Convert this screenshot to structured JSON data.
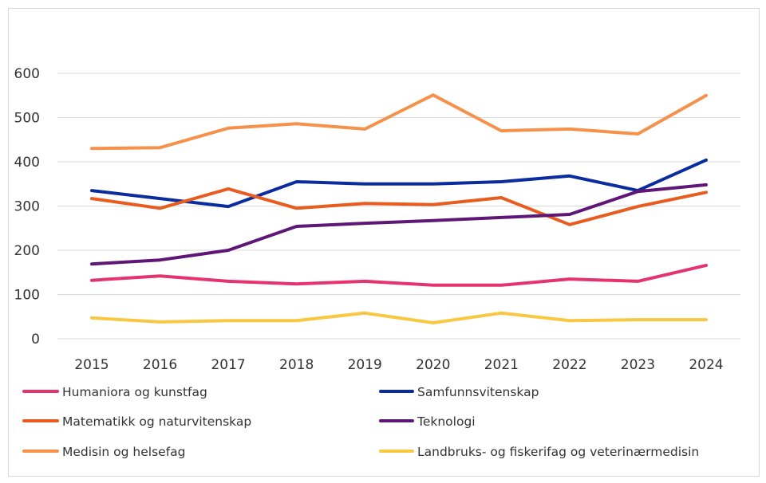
{
  "chart_data": {
    "type": "line",
    "title": "",
    "xlabel": "",
    "ylabel": "",
    "x": [
      "2015",
      "2016",
      "2017",
      "2018",
      "2019",
      "2020",
      "2021",
      "2022",
      "2023",
      "2024"
    ],
    "ylim": [
      0,
      600
    ],
    "yticks": [
      "0",
      "100",
      "200",
      "300",
      "400",
      "500",
      "600"
    ],
    "grid": true,
    "legend_position": "bottom",
    "series": [
      {
        "name": "Humaniora og kunstfag",
        "color": "#e5336f",
        "values": [
          132,
          142,
          130,
          124,
          130,
          121,
          121,
          135,
          130,
          166
        ]
      },
      {
        "name": "Samfunnsvitenskap",
        "color": "#0b2c9e",
        "values": [
          335,
          317,
          299,
          355,
          350,
          350,
          355,
          368,
          335,
          404
        ]
      },
      {
        "name": "Matematikk og naturvitenskap",
        "color": "#e85d1f",
        "values": [
          317,
          295,
          339,
          295,
          306,
          303,
          319,
          258,
          299,
          331
        ]
      },
      {
        "name": "Teknologi",
        "color": "#5f1777",
        "values": [
          169,
          178,
          200,
          254,
          261,
          267,
          274,
          281,
          333,
          348
        ]
      },
      {
        "name": "Medisin og helsefag",
        "color": "#f6914b",
        "values": [
          430,
          432,
          476,
          486,
          474,
          551,
          470,
          474,
          463,
          550
        ]
      },
      {
        "name": "Landbruks- og fiskerifag og veterinærmedisin",
        "color": "#f8c842",
        "values": [
          47,
          38,
          41,
          41,
          58,
          36,
          58,
          41,
          43,
          43
        ]
      }
    ]
  }
}
